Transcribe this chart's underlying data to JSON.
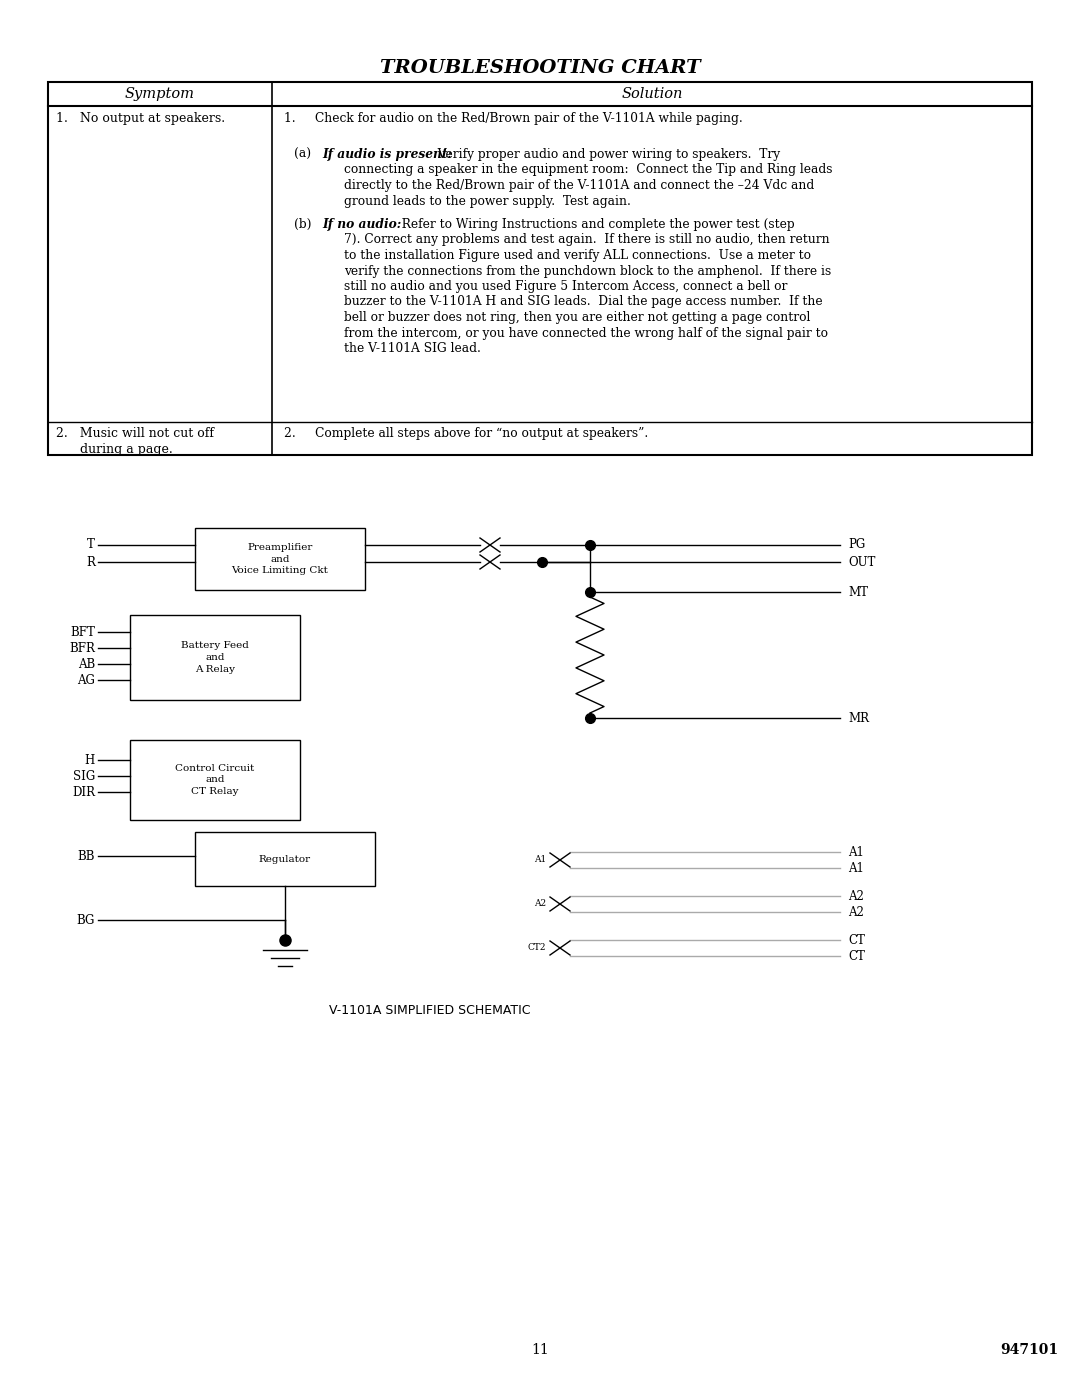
{
  "title": "TROUBLESHOOTING CHART",
  "page_number": "11",
  "doc_number": "947101",
  "bg_color": "#ffffff",
  "table": {
    "header_symptom": "Symptom",
    "header_solution": "Solution",
    "symptom1": "1.   No output at speakers.",
    "symptom2_line1": "2.   Music will not cut off",
    "symptom2_line2": "      during a page.",
    "sol1_line1": "1.     Check for audio on the Red/Brown pair of the V-1101A while paging.",
    "sol1_a_label": "(a)",
    "sol1_a_bold": "If audio is present:",
    "sol1_a_text": "  Verify proper audio and power wiring to speakers.  Try\n            connecting a speaker in the equipment room:  Connect the Tip and Ring leads\n            directly to the Red/Brown pair of the V-1101A and connect the –24 Vdc and\n            ground leads to the power supply.  Test again.",
    "sol1_b_label": "(b)",
    "sol1_b_bold": "If no audio:",
    "sol1_b_text": "  Refer to Wiring Instructions and complete the power test (step\n            7). Correct any problems and test again.  If there is still no audio, then return\n            to the installation Figure used and verify ALL connections.  Use a meter to\n            verify the connections from the punchdown block to the amphenol.  If there is\n            still no audio and you used Figure 5 Intercom Access, connect a bell or\n            buzzer to the V-1101A H and SIG leads.  Dial the page access number.  If the\n            bell or buzzer does not ring, then you are either not getting a page control\n            from the intercom, or you have connected the wrong half of the signal pair to\n            the V-1101A SIG lead.",
    "sol2": "2.     Complete all steps above for “no output at speakers”.",
    "schematic_caption": "V-1101A SIMPLIFIED SCHEMATIC"
  }
}
